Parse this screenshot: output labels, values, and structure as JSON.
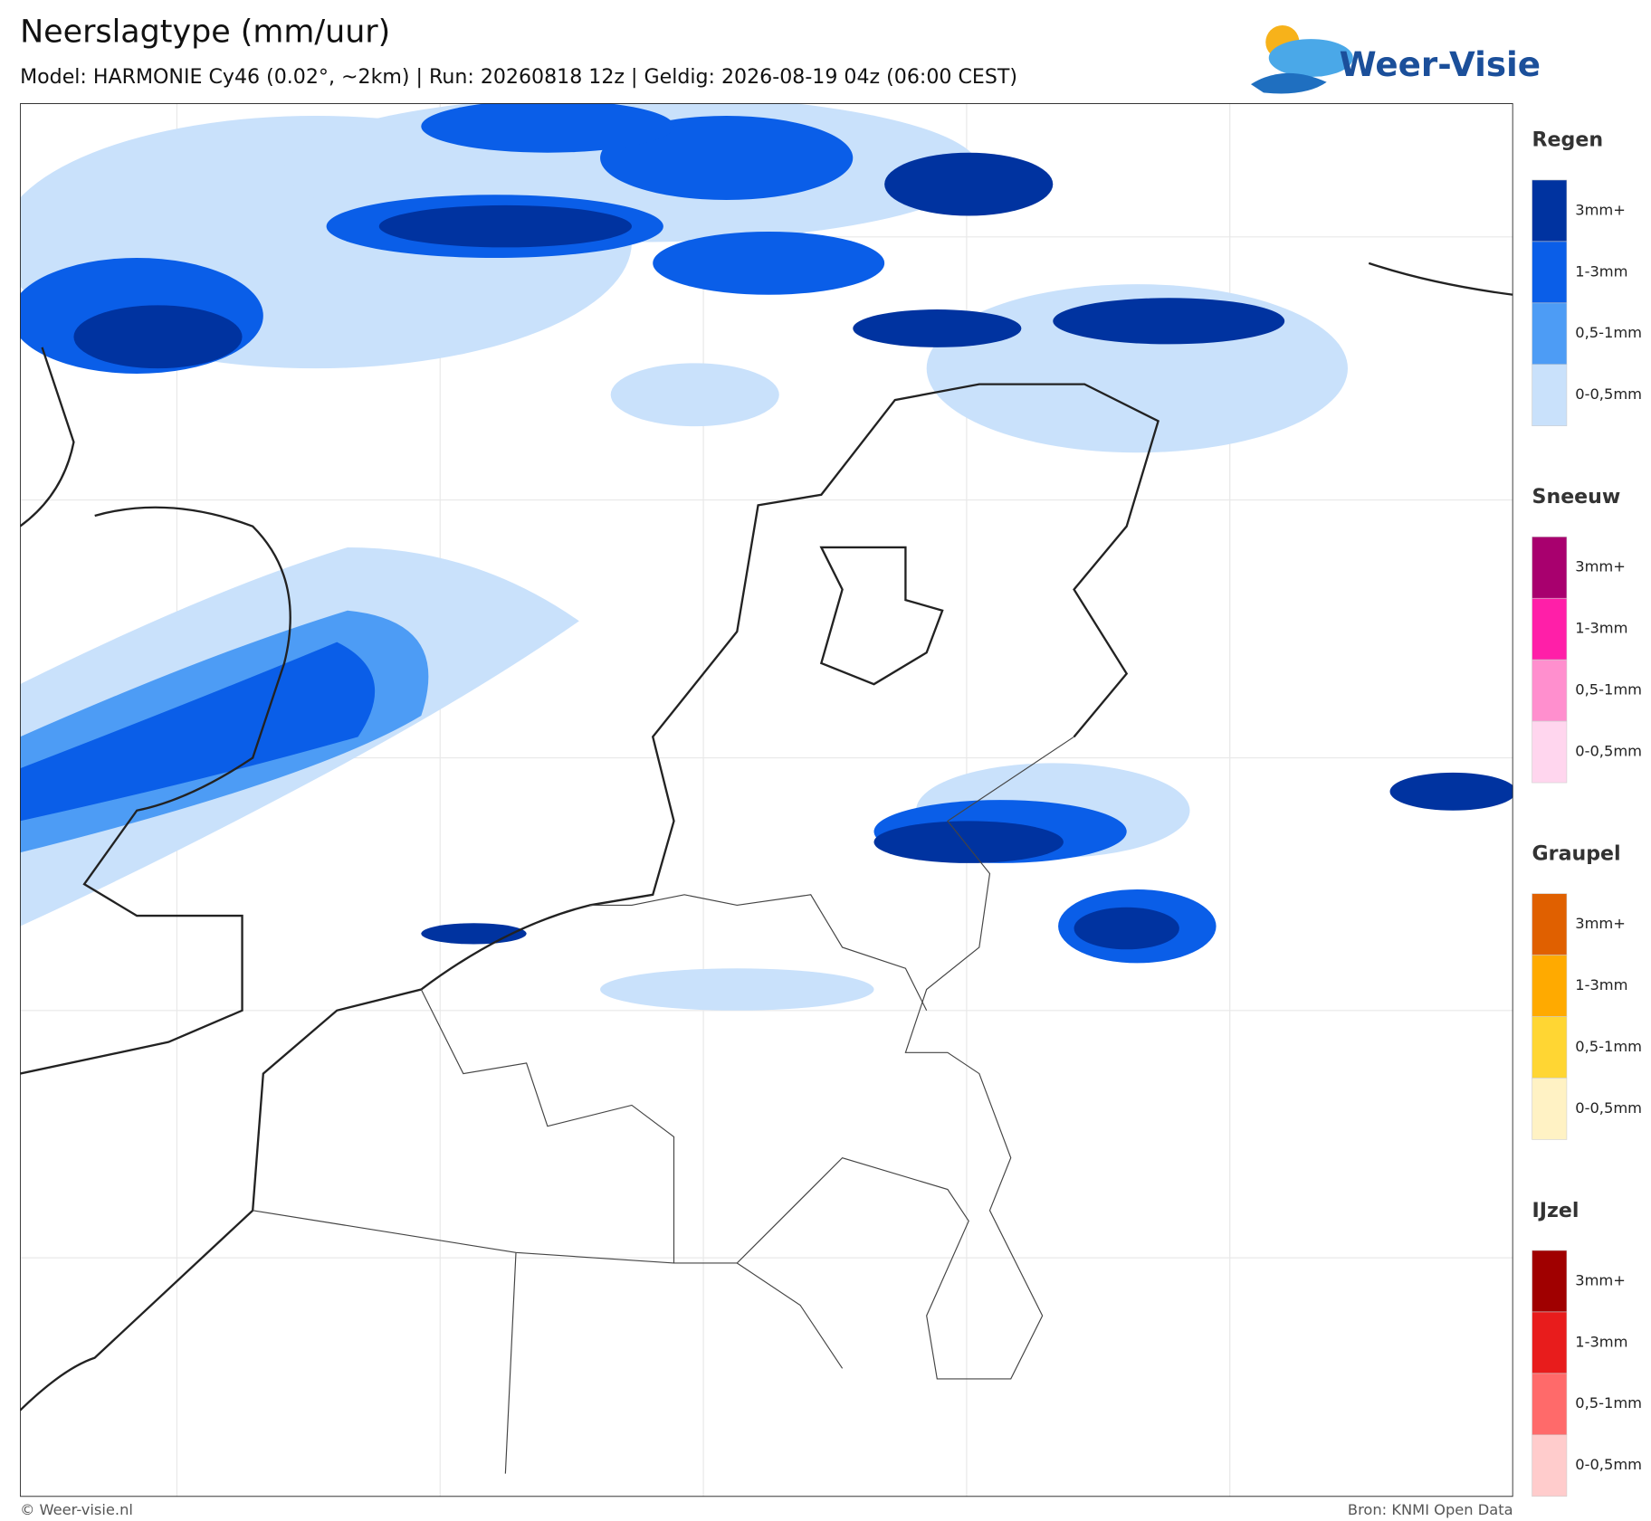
{
  "header": {
    "title": "Neerslagtype (mm/uur)",
    "subtitle": "Model: HARMONIE Cy46 (0.02°, ~2km)  |  Run: 20260818 12z  |  Geldig: 2026-08-19 04z (06:00 CEST)"
  },
  "logo": {
    "text": "Weer-Visie"
  },
  "legend": {
    "groups": [
      {
        "title": "Regen",
        "items": [
          {
            "label": "3mm+",
            "color": "#0033a0"
          },
          {
            "label": "1-3mm",
            "color": "#0a5ee8"
          },
          {
            "label": "0,5-1mm",
            "color": "#4d9cf5"
          },
          {
            "label": "0-0,5mm",
            "color": "#c9e1fb"
          }
        ]
      },
      {
        "title": "Sneeuw",
        "items": [
          {
            "label": "3mm+",
            "color": "#a8006e"
          },
          {
            "label": "1-3mm",
            "color": "#ff1fa8"
          },
          {
            "label": "0,5-1mm",
            "color": "#ff8fce"
          },
          {
            "label": "0-0,5mm",
            "color": "#ffd6ee"
          }
        ]
      },
      {
        "title": "Graupel",
        "items": [
          {
            "label": "3mm+",
            "color": "#e06000"
          },
          {
            "label": "1-3mm",
            "color": "#ffaa00"
          },
          {
            "label": "0,5-1mm",
            "color": "#ffd633"
          },
          {
            "label": "0-0,5mm",
            "color": "#fff2c4"
          }
        ]
      },
      {
        "title": "IJzel",
        "items": [
          {
            "label": "3mm+",
            "color": "#a00000"
          },
          {
            "label": "1-3mm",
            "color": "#e81c1c"
          },
          {
            "label": "0,5-1mm",
            "color": "#ff6a6a"
          },
          {
            "label": "0-0,5mm",
            "color": "#ffcccc"
          }
        ]
      }
    ]
  },
  "footer": {
    "left": "© Weer-visie.nl",
    "right": "Bron: KNMI Open Data"
  }
}
